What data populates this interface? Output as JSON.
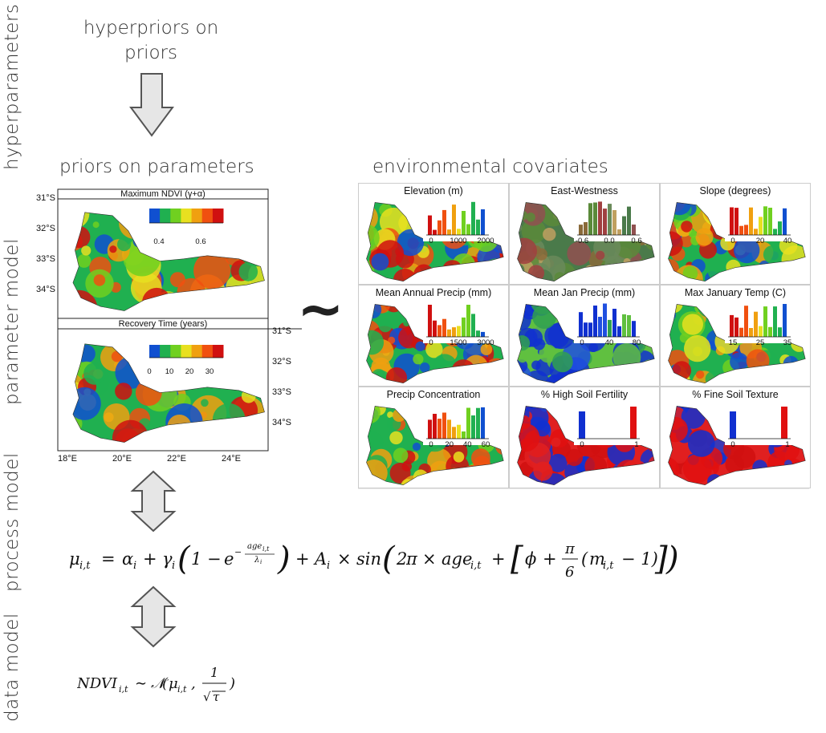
{
  "sections": {
    "hyperparameters": "hyperparameters",
    "parameter_model": "parameter model",
    "process_model": "process model",
    "data_model": "data model"
  },
  "top": {
    "hyperpriors": [
      "hyperpriors on",
      "priors"
    ]
  },
  "headings": {
    "priors": "priors on parameters",
    "env": "environmental covariates"
  },
  "tilde": "~",
  "left_map": {
    "top_title": "Maximum NDVI (γ+α)",
    "top_scale": [
      "0.4",
      "0.6"
    ],
    "bottom_title": "Recovery Time (years)",
    "bottom_scale": [
      "0",
      "10",
      "20",
      "30"
    ],
    "lat_left": [
      "31°S",
      "32°S",
      "33°S",
      "34°S"
    ],
    "lat_right": [
      "31°S",
      "32°S",
      "33°S",
      "34°S"
    ],
    "lon": [
      "18°E",
      "20°E",
      "22°E",
      "24°E"
    ]
  },
  "covariates": [
    {
      "title": "Elevation (m)",
      "ticks": [
        "0",
        "1000",
        "2000"
      ],
      "palette": "rainbow"
    },
    {
      "title": "East-Westness",
      "ticks": [
        "-0.6",
        "0.0",
        "0.6"
      ],
      "palette": "earth"
    },
    {
      "title": "Slope (degrees)",
      "ticks": [
        "0",
        "20",
        "40"
      ],
      "palette": "rainbow"
    },
    {
      "title": "Mean Annual Precip (mm)",
      "ticks": [
        "0",
        "1500",
        "3000"
      ],
      "palette": "rainbow"
    },
    {
      "title": "Mean Jan Precip (mm)",
      "ticks": [
        "0",
        "40",
        "80"
      ],
      "palette": "blue"
    },
    {
      "title": "Max January Temp (C)",
      "ticks": [
        "15",
        "25",
        "35"
      ],
      "palette": "rainbow"
    },
    {
      "title": "Precip Concentration",
      "ticks": [
        "0",
        "20",
        "40",
        "60"
      ],
      "palette": "rainbow"
    },
    {
      "title": "% High Soil Fertility",
      "ticks": [
        "0",
        "1"
      ],
      "palette": "redblue"
    },
    {
      "title": "% Fine Soil Texture",
      "ticks": [
        "0",
        "1"
      ],
      "palette": "redblue"
    }
  ],
  "colors": {
    "arrow_fill": "#e6e6e6",
    "arrow_stroke": "#555555",
    "blue": "#1030d0",
    "red": "#e01010",
    "green": "#20b040",
    "yellow": "#f0e020"
  }
}
